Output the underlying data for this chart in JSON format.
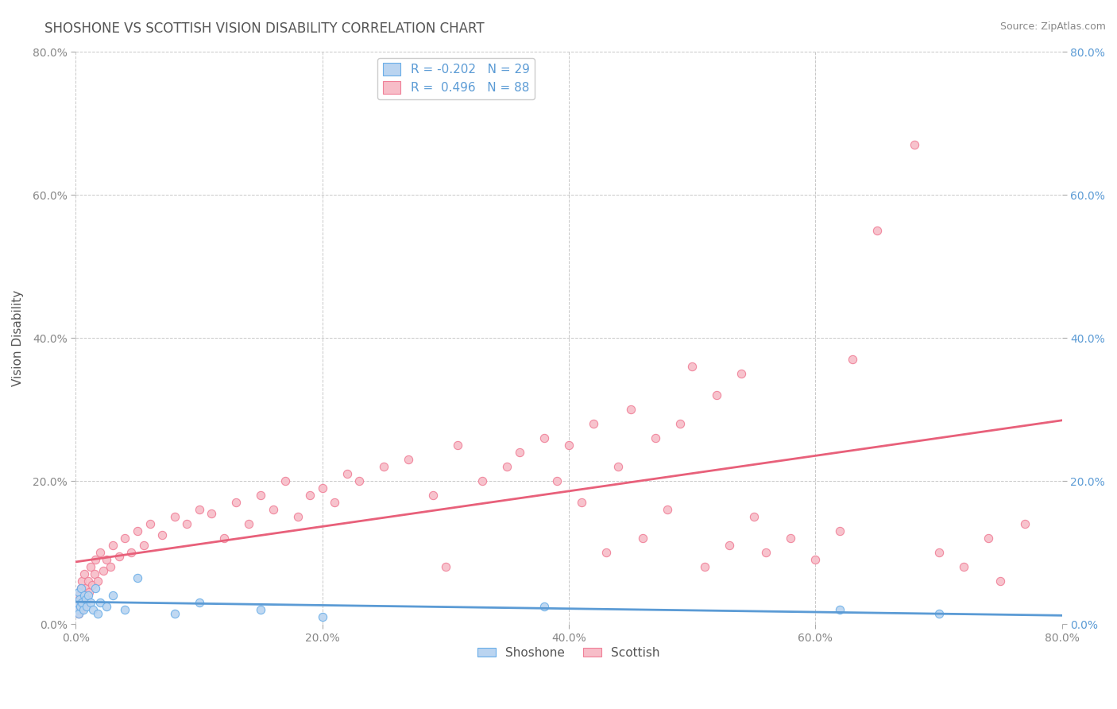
{
  "title": "SHOSHONE VS SCOTTISH VISION DISABILITY CORRELATION CHART",
  "source": "Source: ZipAtlas.com",
  "ylabel": "Vision Disability",
  "x_ticks": [
    0,
    20,
    40,
    60,
    80
  ],
  "y_ticks": [
    0,
    20,
    40,
    60,
    80
  ],
  "xlim": [
    0,
    80
  ],
  "ylim": [
    0,
    80
  ],
  "shoshone_fill_color": "#bad4f0",
  "scottish_fill_color": "#f7bdc8",
  "shoshone_edge_color": "#6aaee8",
  "scottish_edge_color": "#f08098",
  "shoshone_line_color": "#5b9bd5",
  "scottish_line_color": "#e8607a",
  "shoshone_R": -0.202,
  "shoshone_N": 29,
  "scottish_R": 0.496,
  "scottish_N": 88,
  "background_color": "#ffffff",
  "plot_bg_color": "#ffffff",
  "grid_color": "#c8c8c8",
  "title_color": "#555555",
  "source_color": "#888888",
  "axis_label_color": "#555555",
  "tick_label_color_left": "#888888",
  "tick_label_color_right": "#5b9bd5",
  "shoshone_scatter_x": [
    0.1,
    0.15,
    0.2,
    0.25,
    0.3,
    0.35,
    0.4,
    0.5,
    0.6,
    0.7,
    0.8,
    0.9,
    1.0,
    1.2,
    1.4,
    1.6,
    1.8,
    2.0,
    2.5,
    3.0,
    4.0,
    5.0,
    8.0,
    10.0,
    15.0,
    20.0,
    38.0,
    62.0,
    70.0
  ],
  "shoshone_scatter_y": [
    3.0,
    2.0,
    4.5,
    1.5,
    3.5,
    2.5,
    5.0,
    3.0,
    2.0,
    4.0,
    3.5,
    2.5,
    4.0,
    3.0,
    2.0,
    5.0,
    1.5,
    3.0,
    2.5,
    4.0,
    2.0,
    6.5,
    1.5,
    3.0,
    2.0,
    1.0,
    2.5,
    2.0,
    1.5
  ],
  "scottish_scatter_x": [
    0.1,
    0.15,
    0.2,
    0.25,
    0.3,
    0.35,
    0.4,
    0.45,
    0.5,
    0.55,
    0.6,
    0.65,
    0.7,
    0.8,
    0.9,
    1.0,
    1.1,
    1.2,
    1.3,
    1.5,
    1.6,
    1.8,
    2.0,
    2.2,
    2.5,
    2.8,
    3.0,
    3.5,
    4.0,
    4.5,
    5.0,
    5.5,
    6.0,
    7.0,
    8.0,
    9.0,
    10.0,
    11.0,
    12.0,
    13.0,
    14.0,
    15.0,
    16.0,
    17.0,
    18.0,
    19.0,
    20.0,
    21.0,
    22.0,
    23.0,
    25.0,
    27.0,
    29.0,
    31.0,
    33.0,
    35.0,
    36.0,
    38.0,
    39.0,
    40.0,
    42.0,
    44.0,
    45.0,
    47.0,
    49.0,
    50.0,
    52.0,
    54.0,
    56.0,
    58.0,
    60.0,
    62.0,
    63.0,
    65.0,
    68.0,
    70.0,
    72.0,
    74.0,
    75.0,
    77.0,
    30.0,
    41.0,
    43.0,
    46.0,
    48.0,
    51.0,
    53.0,
    55.0
  ],
  "scottish_scatter_y": [
    2.0,
    3.0,
    1.5,
    4.0,
    2.5,
    3.5,
    5.0,
    2.0,
    6.0,
    3.0,
    4.0,
    2.5,
    7.0,
    5.0,
    3.5,
    6.0,
    4.5,
    8.0,
    5.5,
    7.0,
    9.0,
    6.0,
    10.0,
    7.5,
    9.0,
    8.0,
    11.0,
    9.5,
    12.0,
    10.0,
    13.0,
    11.0,
    14.0,
    12.5,
    15.0,
    14.0,
    16.0,
    15.5,
    12.0,
    17.0,
    14.0,
    18.0,
    16.0,
    20.0,
    15.0,
    18.0,
    19.0,
    17.0,
    21.0,
    20.0,
    22.0,
    23.0,
    18.0,
    25.0,
    20.0,
    22.0,
    24.0,
    26.0,
    20.0,
    25.0,
    28.0,
    22.0,
    30.0,
    26.0,
    28.0,
    36.0,
    32.0,
    35.0,
    10.0,
    12.0,
    9.0,
    13.0,
    37.0,
    55.0,
    67.0,
    10.0,
    8.0,
    12.0,
    6.0,
    14.0,
    8.0,
    17.0,
    10.0,
    12.0,
    16.0,
    8.0,
    11.0,
    15.0
  ]
}
